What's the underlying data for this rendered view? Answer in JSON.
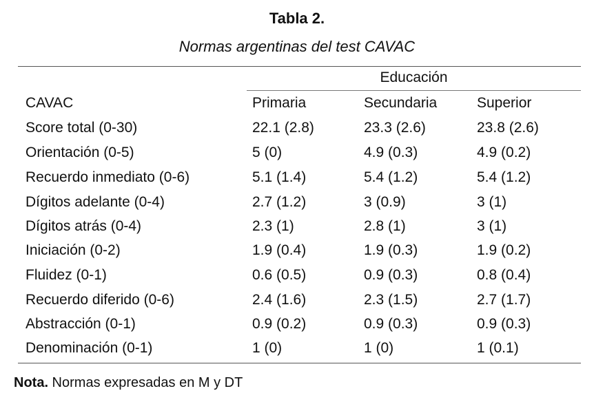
{
  "title": "Tabla 2.",
  "subtitle": "Normas argentinas del test CAVAC",
  "table": {
    "group_header": "Educación",
    "columns": [
      "CAVAC",
      "Primaria",
      "Secundaria",
      "Superior"
    ],
    "rows": [
      [
        "Score total (0-30)",
        "22.1 (2.8)",
        "23.3 (2.6)",
        "23.8 (2.6)"
      ],
      [
        "Orientación (0-5)",
        "5 (0)",
        "4.9 (0.3)",
        "4.9 (0.2)"
      ],
      [
        "Recuerdo inmediato (0-6)",
        "5.1 (1.4)",
        "5.4 (1.2)",
        "5.4 (1.2)"
      ],
      [
        "Dígitos adelante (0-4)",
        "2.7 (1.2)",
        "3 (0.9)",
        "3 (1)"
      ],
      [
        "Dígitos atrás (0-4)",
        "2.3 (1)",
        "2.8 (1)",
        "3 (1)"
      ],
      [
        "Iniciación (0-2)",
        "1.9 (0.4)",
        "1.9 (0.3)",
        "1.9 (0.2)"
      ],
      [
        "Fluidez (0-1)",
        "0.6 (0.5)",
        "0.9 (0.3)",
        "0.8 (0.4)"
      ],
      [
        "Recuerdo diferido (0-6)",
        "2.4 (1.6)",
        "2.3 (1.5)",
        "2.7 (1.7)"
      ],
      [
        "Abstracción (0-1)",
        "0.9 (0.2)",
        "0.9 (0.3)",
        "0.9 (0.3)"
      ],
      [
        "Denominación (0-1)",
        "1 (0)",
        "1 (0)",
        "1 (0.1)"
      ]
    ]
  },
  "note": {
    "label": "Nota.",
    "text": " Normas expresadas en M y DT"
  }
}
